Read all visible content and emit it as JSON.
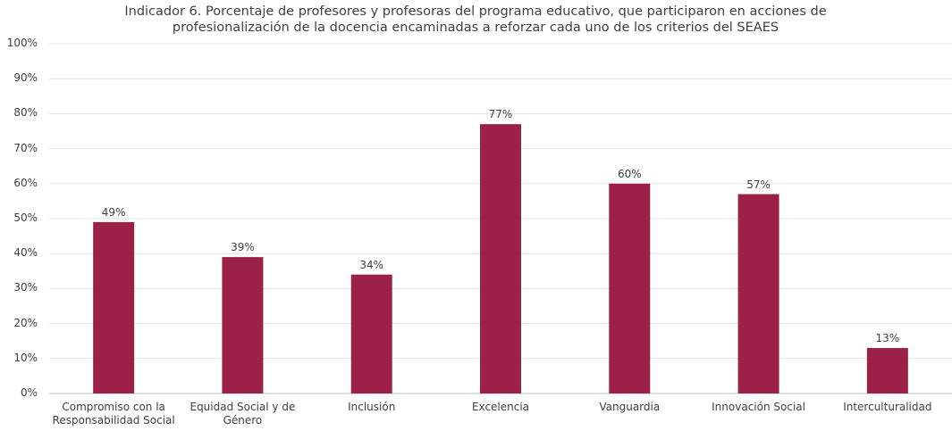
{
  "chart_data": {
    "type": "bar",
    "title": "Indicador 6. Porcentaje de profesores y profesoras del programa educativo, que participaron en acciones de profesionalización de la docencia encaminadas a reforzar cada uno de los criterios del SEAES",
    "categories": [
      "Compromiso con la Responsabilidad Social",
      "Equidad Social y de Género",
      "Inclusión",
      "Excelencia",
      "Vanguardia",
      "Innovación Social",
      "Interculturalidad"
    ],
    "values": [
      49,
      39,
      34,
      77,
      60,
      57,
      13
    ],
    "value_labels": [
      "49%",
      "39%",
      "34%",
      "77%",
      "60%",
      "57%",
      "13%"
    ],
    "color": "#9b2246",
    "ylim": [
      0,
      100
    ],
    "yticks": [
      {
        "value": 0,
        "label": "0%"
      },
      {
        "value": 10,
        "label": "10%"
      },
      {
        "value": 20,
        "label": "20%"
      },
      {
        "value": 30,
        "label": "30%"
      },
      {
        "value": 40,
        "label": "40%"
      },
      {
        "value": 50,
        "label": "50%"
      },
      {
        "value": 60,
        "label": "60%"
      },
      {
        "value": 70,
        "label": "70%"
      },
      {
        "value": 80,
        "label": "80%"
      },
      {
        "value": 90,
        "label": "90%"
      },
      {
        "value": 100,
        "label": "100%"
      }
    ],
    "grid": true
  }
}
